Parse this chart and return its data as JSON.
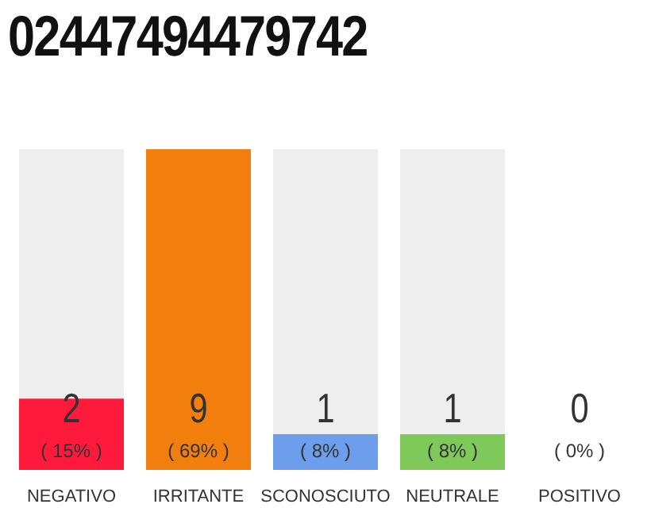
{
  "chart_data": {
    "type": "bar",
    "title": "02447494479742",
    "categories": [
      "NEGATIVO",
      "IRRITANTE",
      "SCONOSCIUTO",
      "NEUTRALE",
      "POSITIVO"
    ],
    "values": [
      2,
      9,
      1,
      1,
      0
    ],
    "colors": [
      "#ff1a3c",
      "#f27e0e",
      "#6d9eeb",
      "#7ec95a",
      "#3cb371"
    ],
    "value_labels": [
      "2",
      "9",
      "1",
      "1",
      "0"
    ],
    "annotations": [
      "( 15% )",
      "( 69% )",
      "( 8% )",
      "( 8% )",
      "( 0% )"
    ],
    "tick_labels": "x"
  }
}
